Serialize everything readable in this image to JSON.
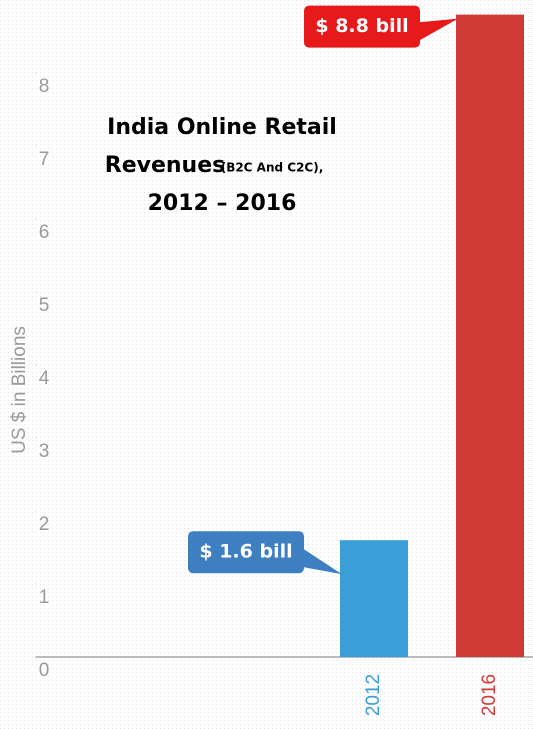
{
  "chart_data": {
    "type": "bar",
    "title_lines": [
      "India Online Retail",
      "Revenues",
      "(B2C And C2C),",
      "2012 – 2016"
    ],
    "y_label": "US $ in Billions",
    "categories": [
      "2012",
      "2016"
    ],
    "values": [
      1.6,
      8.8
    ],
    "value_labels": [
      "$ 1.6 bill",
      "$ 8.8 bill"
    ],
    "colors": [
      "#3a9fd8",
      "#d03a37"
    ],
    "callout_colors": [
      "#3d7fc0",
      "#e8191b"
    ],
    "ylim": [
      0,
      9
    ],
    "yticks": [
      0,
      1,
      2,
      3,
      4,
      5,
      6,
      7,
      8
    ]
  }
}
